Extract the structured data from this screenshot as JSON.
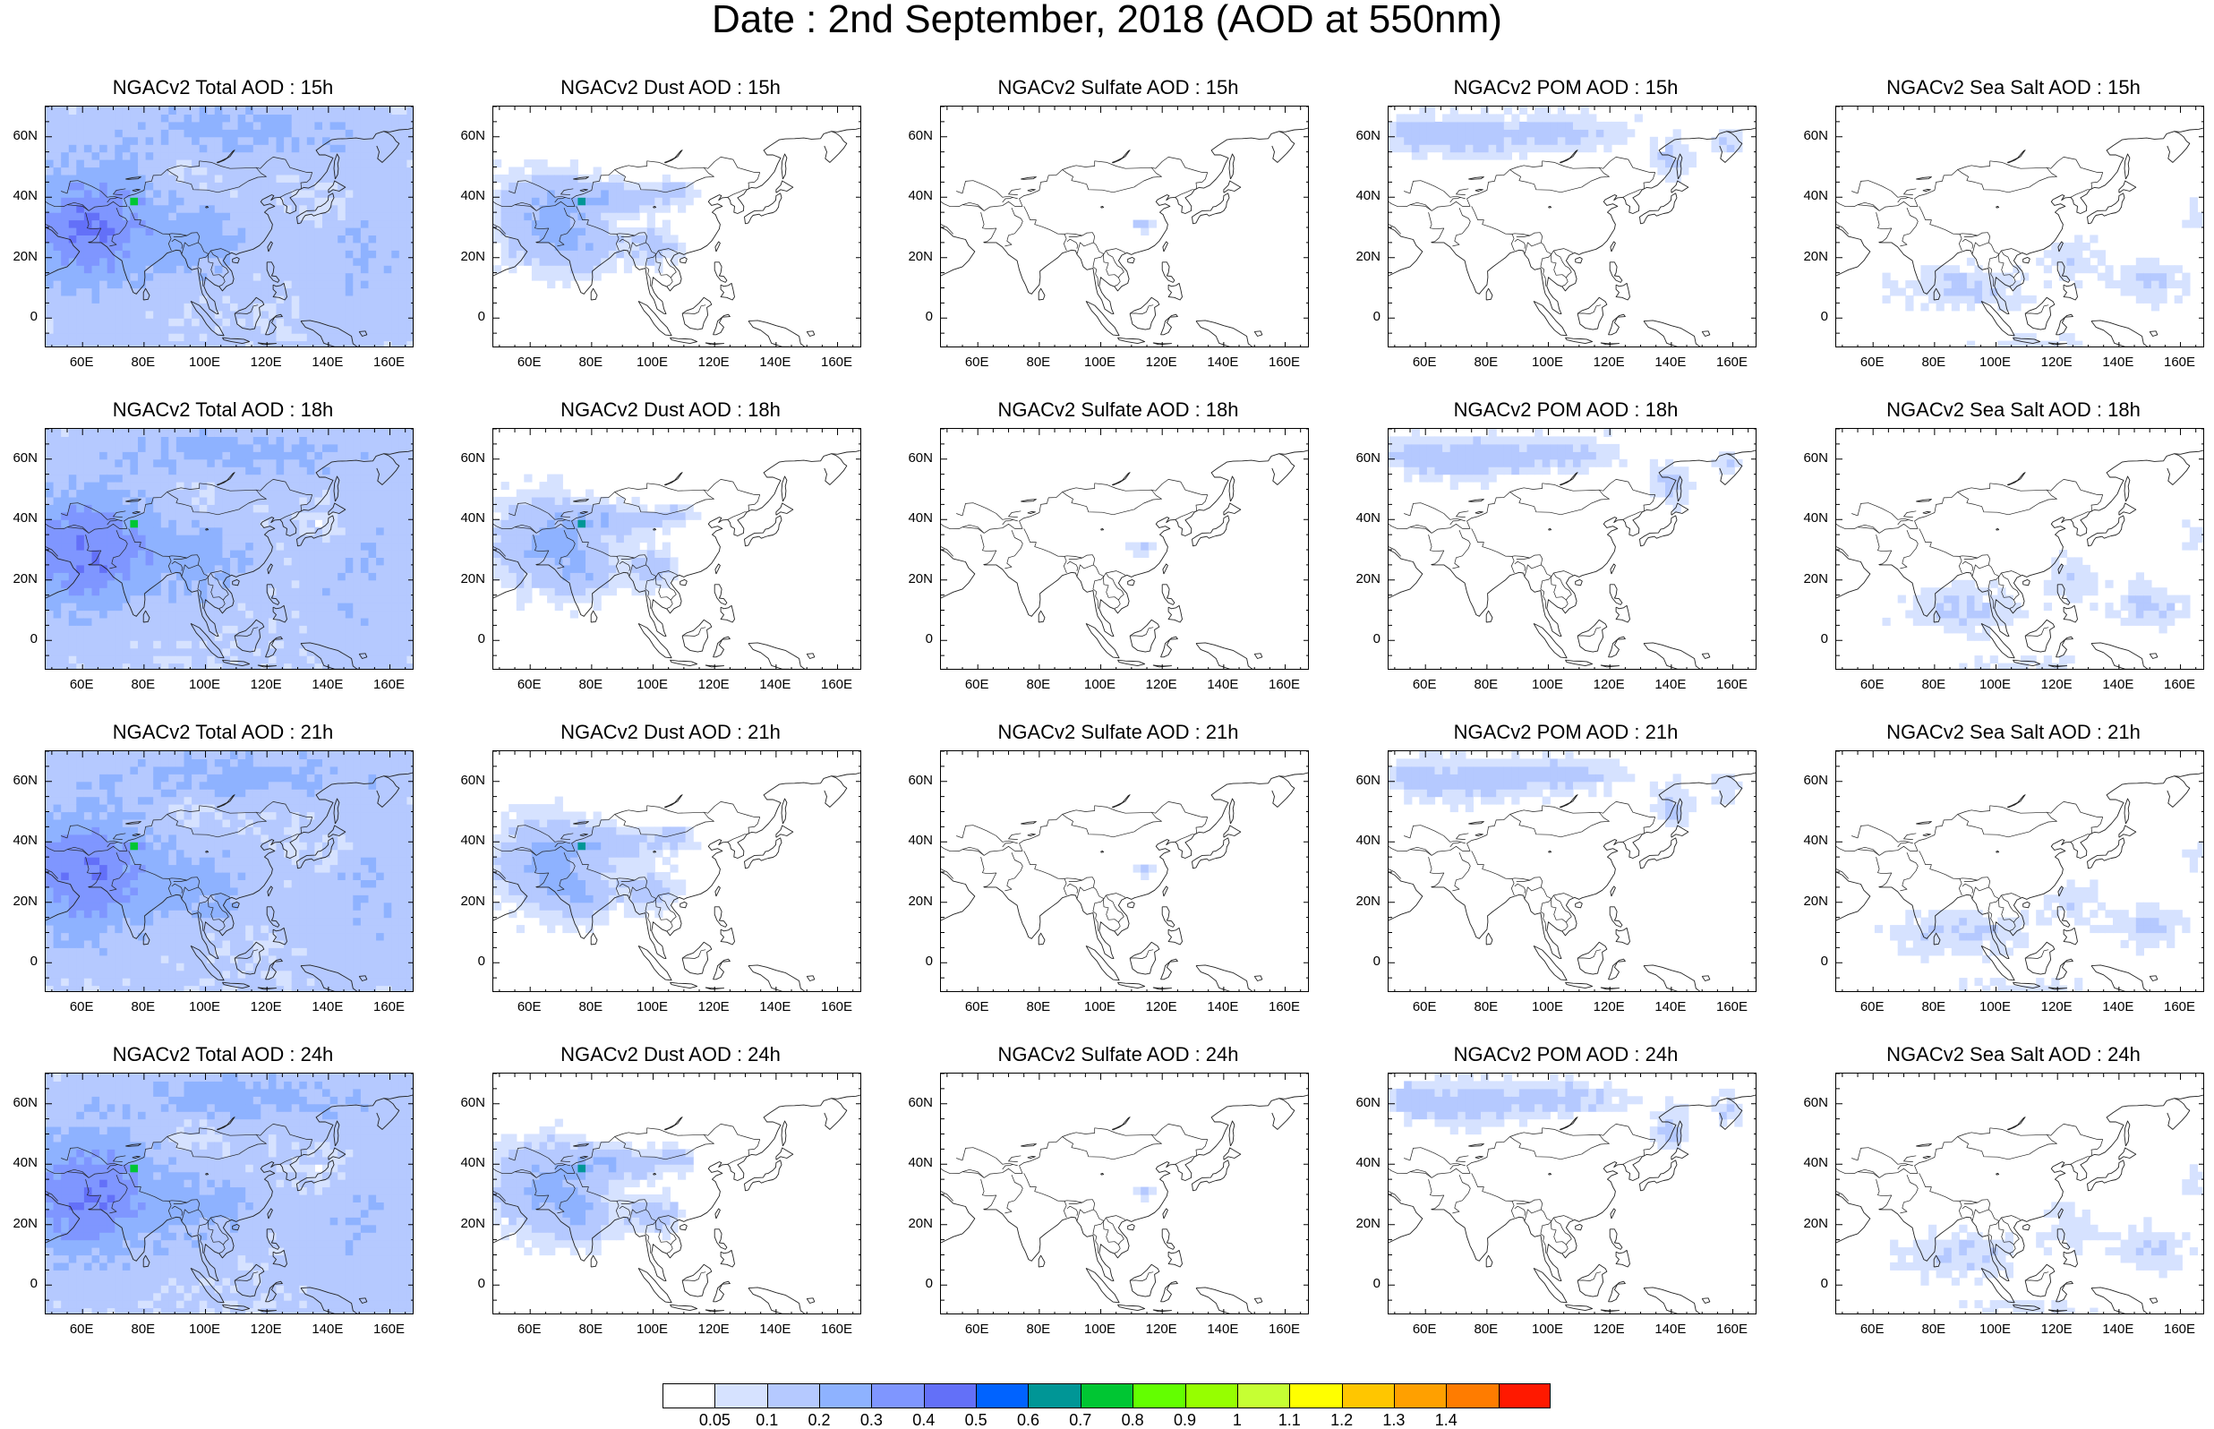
{
  "title": "Date : 2nd September, 2018 (AOD at 550nm)",
  "panels": [
    {
      "title": "NGACv2 Total AOD : 15h",
      "species": "total"
    },
    {
      "title": "NGACv2 Dust AOD : 15h",
      "species": "dust"
    },
    {
      "title": "NGACv2 Sulfate AOD : 15h",
      "species": "sulfate"
    },
    {
      "title": "NGACv2 POM AOD : 15h",
      "species": "pom"
    },
    {
      "title": "NGACv2 Sea Salt AOD : 15h",
      "species": "seasalt"
    },
    {
      "title": "NGACv2 Total AOD : 18h",
      "species": "total"
    },
    {
      "title": "NGACv2 Dust AOD : 18h",
      "species": "dust"
    },
    {
      "title": "NGACv2 Sulfate AOD : 18h",
      "species": "sulfate"
    },
    {
      "title": "NGACv2 POM AOD : 18h",
      "species": "pom"
    },
    {
      "title": "NGACv2 Sea Salt AOD : 18h",
      "species": "seasalt"
    },
    {
      "title": "NGACv2 Total AOD : 21h",
      "species": "total"
    },
    {
      "title": "NGACv2 Dust AOD : 21h",
      "species": "dust"
    },
    {
      "title": "NGACv2 Sulfate AOD : 21h",
      "species": "sulfate"
    },
    {
      "title": "NGACv2 POM AOD : 21h",
      "species": "pom"
    },
    {
      "title": "NGACv2 Sea Salt AOD : 21h",
      "species": "seasalt"
    },
    {
      "title": "NGACv2 Total AOD : 24h",
      "species": "total"
    },
    {
      "title": "NGACv2 Dust AOD : 24h",
      "species": "dust"
    },
    {
      "title": "NGACv2 Sulfate AOD : 24h",
      "species": "sulfate"
    },
    {
      "title": "NGACv2 POM AOD : 24h",
      "species": "pom"
    },
    {
      "title": "NGACv2 Sea Salt  AOD : 24h",
      "species": "seasalt"
    }
  ],
  "map": {
    "lon_range": [
      48,
      168
    ],
    "lat_range": [
      -10,
      70
    ],
    "lon_ticks": [
      "60E",
      "80E",
      "100E",
      "120E",
      "140E",
      "160E"
    ],
    "lon_tick_values": [
      60,
      80,
      100,
      120,
      140,
      160
    ],
    "lat_ticks": [
      "60N",
      "40N",
      "20N",
      "0"
    ],
    "lat_tick_values": [
      60,
      40,
      20,
      0
    ]
  },
  "colorbar": {
    "labels": [
      "0.05",
      "0.1",
      "0.2",
      "0.3",
      "0.4",
      "0.5",
      "0.6",
      "0.7",
      "0.8",
      "0.9",
      "1",
      "1.1",
      "1.2",
      "1.3",
      "1.4"
    ],
    "colors": [
      "#ffffff",
      "#d6e2ff",
      "#b5c9ff",
      "#8eb2ff",
      "#7f96ff",
      "#6370f8",
      "#0063ff",
      "#009696",
      "#00c633",
      "#63ff00",
      "#96ff00",
      "#c6ff33",
      "#ffff00",
      "#ffc600",
      "#ffa000",
      "#ff7c00",
      "#ff1900"
    ]
  }
}
